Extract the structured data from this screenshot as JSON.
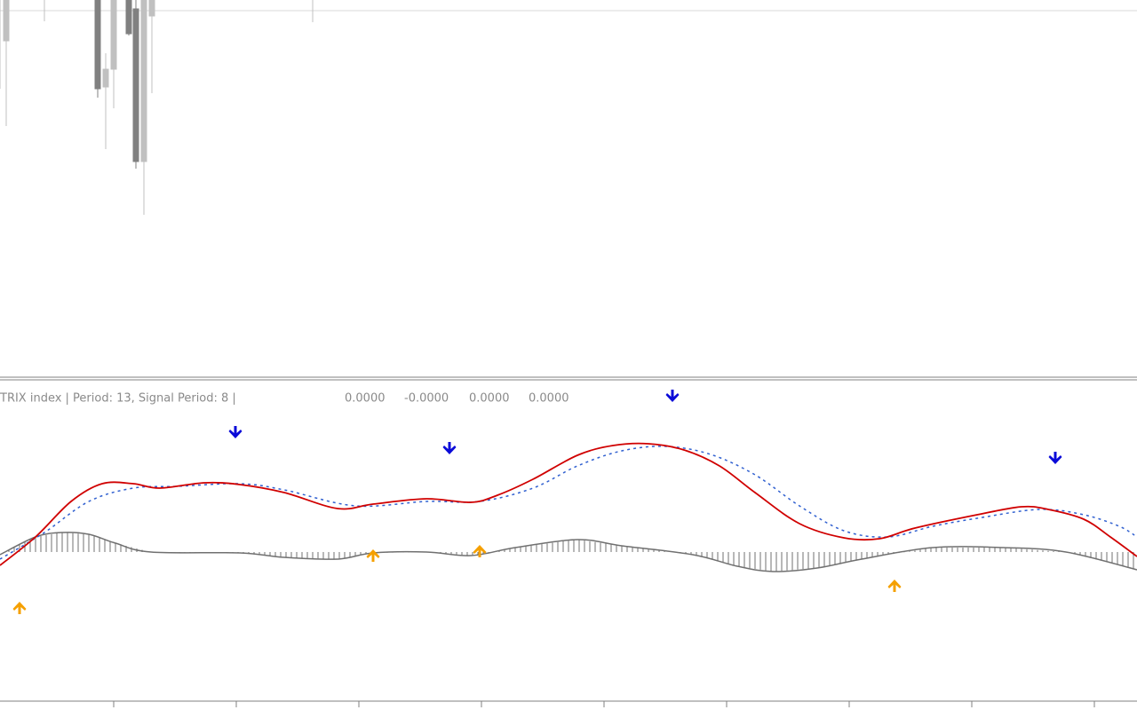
{
  "indicator": {
    "label": "TRIX index | Period: 13, Signal Period: 8 |",
    "values": [
      "0.0000",
      "-0.0000",
      "0.0000",
      "0.0000"
    ]
  }
}
